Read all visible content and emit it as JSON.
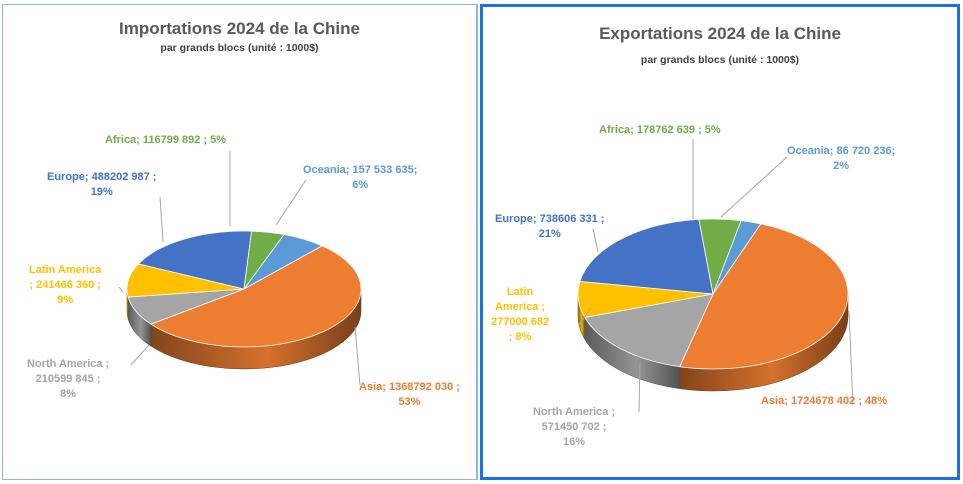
{
  "charts": [
    {
      "id": "left",
      "chart_data": {
        "type": "pie",
        "title": "Importations 2024 de la Chine",
        "subtitle": "par grands blocs (unité : 1000$)",
        "legend": "none",
        "slices": [
          {
            "name": "Oceania",
            "value": 157533635,
            "value_text": "157 533 635",
            "percent": 6,
            "color": "#5b9bd5"
          },
          {
            "name": "Asia",
            "value": 1368792030,
            "value_text": "1368792 030",
            "percent": 53,
            "color": "#ed7d31"
          },
          {
            "name": "North America",
            "value": 210599845,
            "value_text": "210599 845",
            "percent": 8,
            "color": "#a5a5a5"
          },
          {
            "name": "Latin America",
            "value": 241466360,
            "value_text": "241466 360",
            "percent": 9,
            "color": "#ffc000"
          },
          {
            "name": "Europe",
            "value": 488202987,
            "value_text": "488202 987",
            "percent": 19,
            "color": "#4472c4"
          },
          {
            "name": "Africa",
            "value": 116799892,
            "value_text": "116799 892",
            "percent": 5,
            "color": "#70ad47"
          }
        ]
      },
      "labels": [
        {
          "lines": [
            "Oceania; 157 533 635;",
            "6%"
          ]
        },
        {
          "lines": [
            "Asia; 1368792 030 ;",
            "53%"
          ]
        },
        {
          "lines": [
            "North America ;",
            "210599 845 ;",
            "8%"
          ]
        },
        {
          "lines": [
            "Latin America",
            "; 241466 360 ;",
            "9%"
          ]
        },
        {
          "lines": [
            "Europe; 488202 987 ;",
            "19%"
          ]
        },
        {
          "lines": [
            "Africa; 116799 892 ; 5%"
          ]
        }
      ]
    },
    {
      "id": "right",
      "chart_data": {
        "type": "pie",
        "title": "Exportations 2024 de la Chine",
        "subtitle": "par grands blocs (unité : 1000$)",
        "legend": "none",
        "slices": [
          {
            "name": "Oceania",
            "value": 86720236,
            "value_text": "86 720 236",
            "percent": 2,
            "color": "#5b9bd5"
          },
          {
            "name": "Asia",
            "value": 1724678402,
            "value_text": "1724678 402",
            "percent": 48,
            "color": "#ed7d31"
          },
          {
            "name": "North America",
            "value": 571450702,
            "value_text": "571450 702",
            "percent": 16,
            "color": "#a5a5a5"
          },
          {
            "name": "Latin America",
            "value": 277000682,
            "value_text": "277000 682",
            "percent": 8,
            "color": "#ffc000"
          },
          {
            "name": "Europe",
            "value": 738606331,
            "value_text": "738606 331",
            "percent": 21,
            "color": "#4472c4"
          },
          {
            "name": "Africa",
            "value": 178762639,
            "value_text": "178762 639",
            "percent": 5,
            "color": "#70ad47"
          }
        ]
      },
      "labels": [
        {
          "lines": [
            "Oceania; 86 720 236;",
            "2%"
          ]
        },
        {
          "lines": [
            "Asia; 1724678 402 ; 48%"
          ]
        },
        {
          "lines": [
            "North America ;",
            "571450 702 ;",
            "16%"
          ]
        },
        {
          "lines": [
            "Latin",
            "America ;",
            "277000 682",
            "; 8%"
          ]
        },
        {
          "lines": [
            "Europe; 738606 331 ;",
            "21%"
          ]
        },
        {
          "lines": [
            "Africa; 178762 639 ; 5%"
          ]
        }
      ]
    }
  ]
}
